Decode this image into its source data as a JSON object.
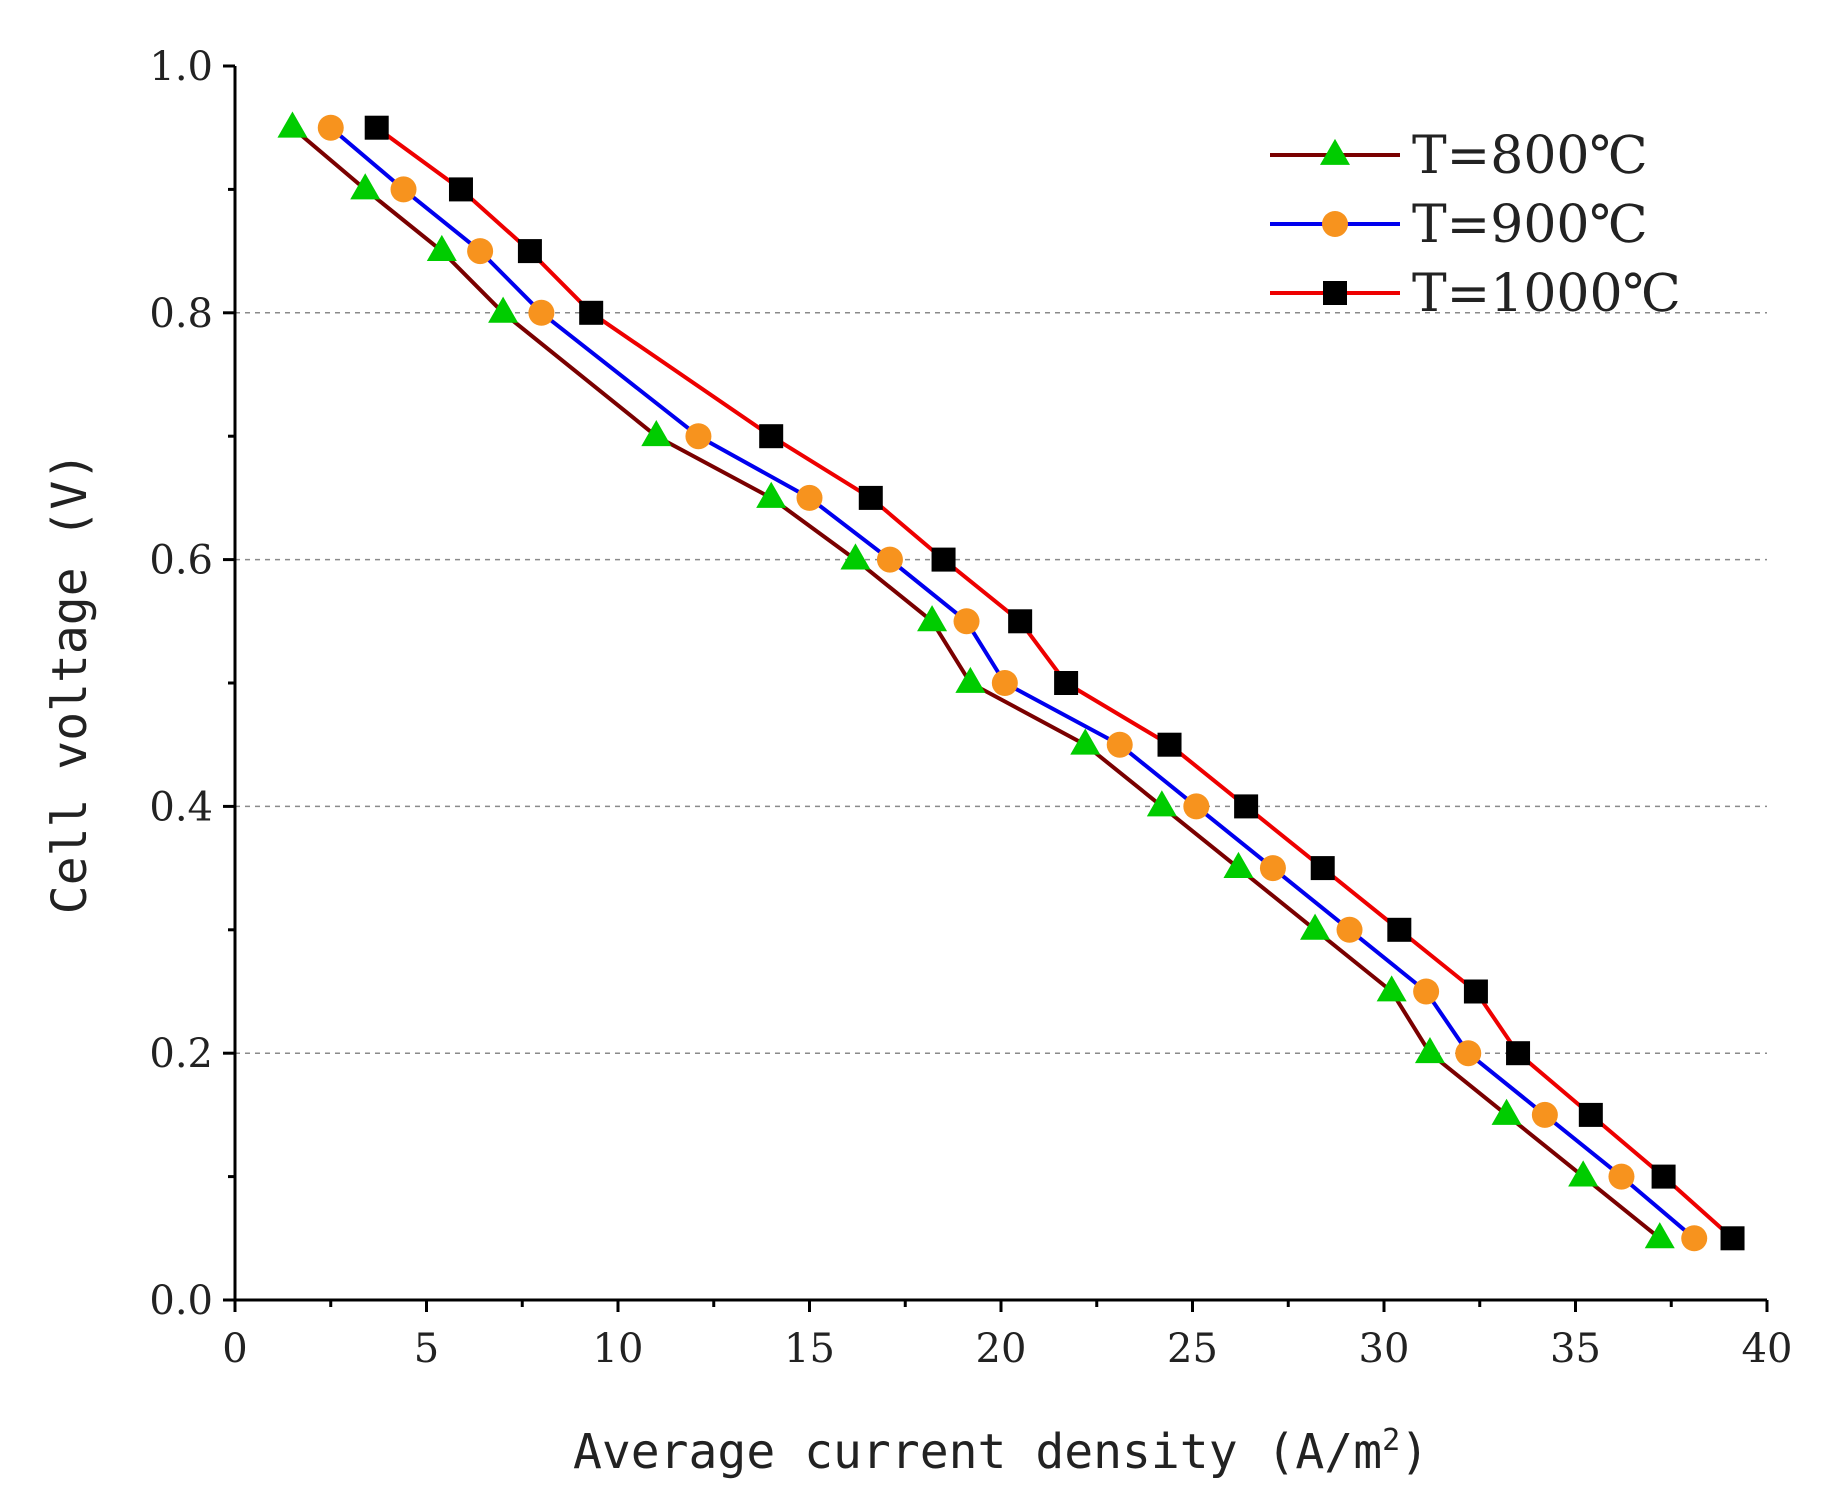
{
  "chart_data": {
    "type": "line",
    "title": "",
    "xlabel": "Average current density (A/m",
    "xlabel_superscript": "2",
    "xlabel_suffix": ")",
    "ylabel": "Cell voltage (V)",
    "xlim": [
      0,
      40
    ],
    "ylim": [
      0,
      1.0
    ],
    "x_ticks": [
      0,
      5,
      10,
      15,
      20,
      25,
      30,
      35,
      40
    ],
    "x_tick_labels": [
      "0",
      "5",
      "10",
      "15",
      "20",
      "25",
      "30",
      "35",
      "40"
    ],
    "y_ticks": [
      0,
      0.2,
      0.4,
      0.6,
      0.8,
      1.0
    ],
    "y_tick_labels": [
      "0.0",
      "0.2",
      "0.4",
      "0.6",
      "0.8",
      "1.0"
    ],
    "y_minor_ticks": [
      0.1,
      0.3,
      0.5,
      0.7,
      0.9
    ],
    "x_minor_ticks": [
      2.5,
      7.5,
      12.5,
      17.5,
      22.5,
      27.5,
      32.5,
      37.5
    ],
    "grid": {
      "y_major_dashed": [
        0.2,
        0.4,
        0.6,
        0.8
      ]
    },
    "legend_position": "top-right",
    "series": [
      {
        "name": "T=800℃",
        "line_color": "#7a0000",
        "marker": "triangle",
        "marker_color": "#00cc00",
        "points": [
          [
            1.5,
            0.95
          ],
          [
            3.4,
            0.9
          ],
          [
            5.4,
            0.85
          ],
          [
            7.0,
            0.8
          ],
          [
            11.0,
            0.7
          ],
          [
            14.0,
            0.65
          ],
          [
            16.2,
            0.6
          ],
          [
            18.2,
            0.55
          ],
          [
            19.2,
            0.5
          ],
          [
            22.2,
            0.45
          ],
          [
            24.2,
            0.4
          ],
          [
            26.2,
            0.35
          ],
          [
            28.2,
            0.3
          ],
          [
            30.2,
            0.25
          ],
          [
            31.2,
            0.2
          ],
          [
            33.2,
            0.15
          ],
          [
            35.2,
            0.1
          ],
          [
            37.2,
            0.05
          ]
        ]
      },
      {
        "name": "T=900℃",
        "line_color": "#0000ee",
        "marker": "circle",
        "marker_color": "#f7931e",
        "points": [
          [
            2.5,
            0.95
          ],
          [
            4.4,
            0.9
          ],
          [
            6.4,
            0.85
          ],
          [
            8.0,
            0.8
          ],
          [
            12.1,
            0.7
          ],
          [
            15.0,
            0.65
          ],
          [
            17.1,
            0.6
          ],
          [
            19.1,
            0.55
          ],
          [
            20.1,
            0.5
          ],
          [
            23.1,
            0.45
          ],
          [
            25.1,
            0.4
          ],
          [
            27.1,
            0.35
          ],
          [
            29.1,
            0.3
          ],
          [
            31.1,
            0.25
          ],
          [
            32.2,
            0.2
          ],
          [
            34.2,
            0.15
          ],
          [
            36.2,
            0.1
          ],
          [
            38.1,
            0.05
          ]
        ]
      },
      {
        "name": "T=1000℃",
        "line_color": "#ee0000",
        "marker": "square",
        "marker_color": "#000000",
        "points": [
          [
            3.7,
            0.95
          ],
          [
            5.9,
            0.9
          ],
          [
            7.7,
            0.85
          ],
          [
            9.3,
            0.8
          ],
          [
            14.0,
            0.7
          ],
          [
            16.6,
            0.65
          ],
          [
            18.5,
            0.6
          ],
          [
            20.5,
            0.55
          ],
          [
            21.7,
            0.5
          ],
          [
            24.4,
            0.45
          ],
          [
            26.4,
            0.4
          ],
          [
            28.4,
            0.35
          ],
          [
            30.4,
            0.3
          ],
          [
            32.4,
            0.25
          ],
          [
            33.5,
            0.2
          ],
          [
            35.4,
            0.15
          ],
          [
            37.3,
            0.1
          ],
          [
            39.1,
            0.05
          ]
        ]
      }
    ]
  }
}
